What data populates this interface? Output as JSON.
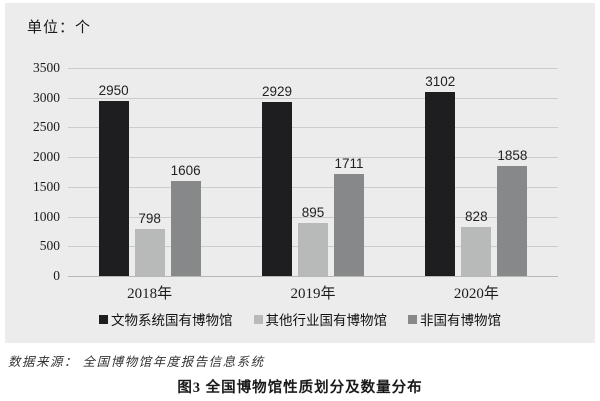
{
  "unit_label": "单位：个",
  "source_note": "数据来源： 全国博物馆年度报告信息系统",
  "caption": "图3  全国博物馆性质划分及数量分布",
  "colors": {
    "panel_background": "#ebeceb",
    "gridline": "#cbcdcc",
    "series_black": "#1e1e20",
    "series_light_gray": "#b8bab9",
    "series_dark_gray": "#868889",
    "text": "#1c1c1c"
  },
  "chart_data": {
    "type": "bar",
    "categories": [
      "2018年",
      "2019年",
      "2020年"
    ],
    "series": [
      {
        "name": "文物系统国有博物馆",
        "color": "#1e1e20",
        "values": [
          2950,
          2929,
          3102
        ]
      },
      {
        "name": "其他行业国有博物馆",
        "color": "#b8bab9",
        "values": [
          798,
          895,
          828
        ]
      },
      {
        "name": "非国有博物馆",
        "color": "#868889",
        "values": [
          1606,
          1711,
          1858
        ]
      }
    ],
    "title": "",
    "xlabel": "",
    "ylabel": "",
    "ylim": [
      0,
      3500
    ],
    "yticks": [
      0,
      500,
      1000,
      1500,
      2000,
      2500,
      3000,
      3500
    ],
    "grid": true,
    "legend_position": "bottom",
    "value_labels": true
  }
}
